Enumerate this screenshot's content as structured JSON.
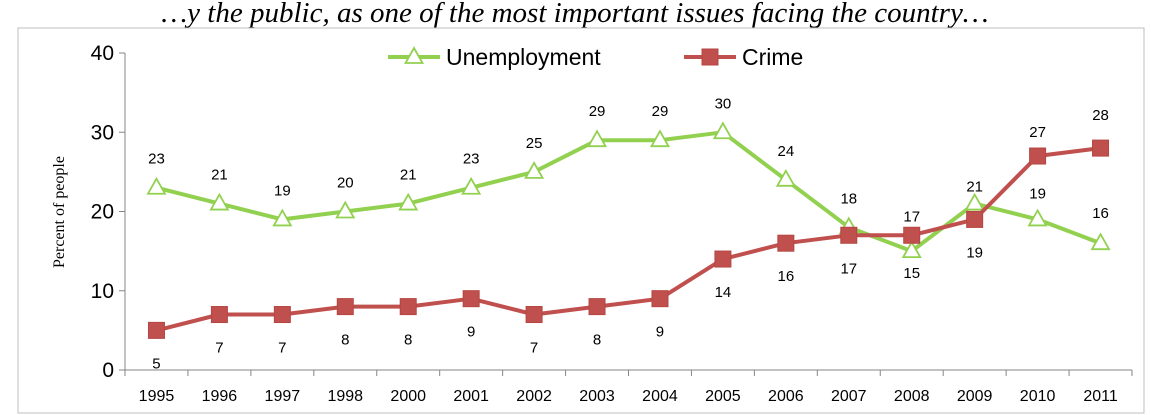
{
  "chart_data": {
    "type": "line",
    "title": "…y the public, as one of the most important issues facing the country…",
    "ylabel": "Percent of people",
    "ylim": [
      0,
      40
    ],
    "yticks": [
      0,
      10,
      20,
      30,
      40
    ],
    "grid": false,
    "legend_position": "top",
    "categories": [
      "1995",
      "1996",
      "1997",
      "1998",
      "2000",
      "2001",
      "2002",
      "2003",
      "2004",
      "2005",
      "2006",
      "2007",
      "2008",
      "2009",
      "2010",
      "2011"
    ],
    "series": [
      {
        "name": "Unemployment",
        "color": "#92d050",
        "marker": "triangle-open",
        "values": [
          23,
          21,
          19,
          20,
          21,
          23,
          25,
          29,
          29,
          30,
          24,
          18,
          15,
          21,
          19,
          16
        ],
        "labels": [
          "23",
          "21",
          "19",
          "20",
          "21",
          "23",
          "25",
          "29",
          "29",
          "30",
          "24",
          "18",
          "15",
          "21",
          "19",
          "16"
        ]
      },
      {
        "name": "Crime",
        "color": "#c0504d",
        "marker": "square",
        "values": [
          5,
          7,
          7,
          8,
          8,
          9,
          7,
          8,
          9,
          14,
          16,
          17,
          17,
          19,
          27,
          28
        ],
        "labels": [
          "5",
          "7",
          "7",
          "8",
          "8",
          "9",
          "7",
          "8",
          "9",
          "14",
          "16",
          "17",
          "17",
          "19",
          "27",
          "28"
        ]
      }
    ]
  }
}
